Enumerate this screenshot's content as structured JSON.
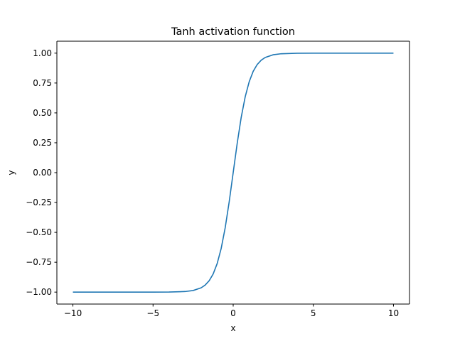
{
  "chart_data": {
    "type": "line",
    "title": "Tanh activation function",
    "xlabel": "x",
    "ylabel": "y",
    "xlim": [
      -11,
      11
    ],
    "ylim": [
      -1.1,
      1.1
    ],
    "grid": false,
    "xticks": [
      -10,
      -5,
      0,
      5,
      10
    ],
    "xtick_labels": [
      "−10",
      "−5",
      "0",
      "5",
      "10"
    ],
    "yticks": [
      -1.0,
      -0.75,
      -0.5,
      -0.25,
      0.0,
      0.25,
      0.5,
      0.75,
      1.0
    ],
    "ytick_labels": [
      "−1.00",
      "−0.75",
      "−0.50",
      "−0.25",
      "0.00",
      "0.25",
      "0.50",
      "0.75",
      "1.00"
    ],
    "colors": {
      "series": "#1f77b4"
    },
    "series": [
      {
        "x": [
          -10,
          -5,
          -4,
          -3,
          -2.5,
          -2,
          -1.75,
          -1.5,
          -1.25,
          -1,
          -0.75,
          -0.5,
          -0.25,
          0,
          0.25,
          0.5,
          0.75,
          1,
          1.25,
          1.5,
          1.75,
          2,
          2.5,
          3,
          4,
          5,
          10
        ],
        "y": [
          -1.0,
          -0.9999,
          -0.9993,
          -0.9951,
          -0.9866,
          -0.964,
          -0.9414,
          -0.9051,
          -0.8483,
          -0.7616,
          -0.6351,
          -0.4621,
          -0.2449,
          0.0,
          0.2449,
          0.4621,
          0.6351,
          0.7616,
          0.8483,
          0.9051,
          0.9414,
          0.964,
          0.9866,
          0.9951,
          0.9993,
          0.9999,
          1.0
        ]
      }
    ]
  }
}
